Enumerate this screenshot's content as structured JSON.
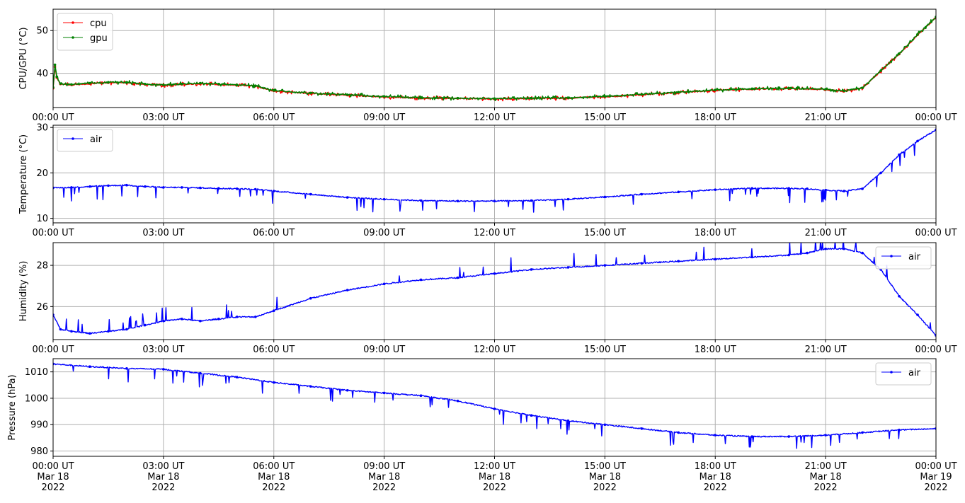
{
  "x_tick_labels": [
    "00:00 UT",
    "03:00 UT",
    "06:00 UT",
    "09:00 UT",
    "12:00 UT",
    "15:00 UT",
    "18:00 UT",
    "21:00 UT",
    "00:00 UT"
  ],
  "x_tick_dates": [
    "Mar 18",
    "Mar 18",
    "Mar 18",
    "Mar 18",
    "Mar 18",
    "Mar 18",
    "Mar 18",
    "Mar 18",
    "Mar 19"
  ],
  "x_tick_years": [
    "2022",
    "2022",
    "2022",
    "2022",
    "2022",
    "2022",
    "2022",
    "2022",
    "2022"
  ],
  "colors": {
    "cpu": "#ff0000",
    "gpu": "#008000",
    "air": "#0000ff",
    "grid": "#b0b0b0"
  },
  "chart_data": [
    {
      "type": "line",
      "ylabel": "CPU/GPU (°C)",
      "xlim": [
        "2022-03-18 00:00",
        "2022-03-19 00:00"
      ],
      "ylim": [
        32,
        55
      ],
      "yticks": [
        40,
        50
      ],
      "grid": true,
      "legend": "top-left",
      "x_hours": [
        0,
        0.05,
        0.1,
        0.2,
        0.5,
        1,
        1.5,
        2,
        2.5,
        3,
        3.5,
        4,
        4.5,
        5,
        5.5,
        6,
        7,
        8,
        9,
        10,
        11,
        12,
        13,
        14,
        15,
        16,
        17,
        18,
        19,
        20,
        21,
        21.5,
        22,
        22.5,
        23,
        23.5,
        24
      ],
      "series": [
        {
          "name": "cpu",
          "values": [
            36.5,
            41.5,
            39.0,
            37.5,
            37.3,
            37.6,
            37.8,
            37.8,
            37.4,
            37.2,
            37.4,
            37.6,
            37.4,
            37.2,
            37.0,
            35.9,
            35.3,
            34.9,
            34.5,
            34.2,
            34.1,
            34.0,
            34.1,
            34.2,
            34.5,
            35.0,
            35.5,
            36.0,
            36.3,
            36.4,
            36.2,
            35.8,
            36.5,
            40.5,
            44.5,
            49.0,
            53.0
          ]
        },
        {
          "name": "gpu",
          "values": [
            36.7,
            42.0,
            39.2,
            37.6,
            37.4,
            37.7,
            37.9,
            37.9,
            37.5,
            37.3,
            37.5,
            37.7,
            37.5,
            37.3,
            37.1,
            36.0,
            35.4,
            35.0,
            34.6,
            34.3,
            34.2,
            34.1,
            34.2,
            34.3,
            34.6,
            35.1,
            35.6,
            36.1,
            36.4,
            36.5,
            36.3,
            35.9,
            36.6,
            40.6,
            44.6,
            49.1,
            53.2
          ]
        }
      ]
    },
    {
      "type": "line",
      "ylabel": "Temperature (°C)",
      "xlim": [
        "2022-03-18 00:00",
        "2022-03-19 00:00"
      ],
      "ylim": [
        9,
        30.5
      ],
      "yticks": [
        10,
        20,
        30
      ],
      "grid": true,
      "legend": "top-left",
      "x_hours": [
        0,
        0.5,
        1,
        1.5,
        2,
        2.5,
        3,
        3.5,
        4,
        4.5,
        5,
        5.5,
        6,
        7,
        8,
        9,
        10,
        11,
        12,
        13,
        14,
        15,
        16,
        17,
        18,
        19,
        20,
        20.5,
        21,
        21.5,
        22,
        22.5,
        23,
        23.5,
        24
      ],
      "series": [
        {
          "name": "air",
          "values": [
            16.7,
            16.8,
            17.0,
            17.2,
            17.3,
            17.0,
            16.8,
            16.8,
            16.7,
            16.6,
            16.5,
            16.4,
            16.0,
            15.3,
            14.6,
            14.2,
            13.9,
            13.8,
            13.8,
            13.9,
            14.2,
            14.7,
            15.3,
            15.8,
            16.3,
            16.6,
            16.6,
            16.5,
            16.2,
            16.0,
            16.5,
            20.0,
            24.0,
            27.0,
            29.5
          ]
        }
      ]
    },
    {
      "type": "line",
      "ylabel": "Humidity (%)",
      "xlim": [
        "2022-03-18 00:00",
        "2022-03-19 00:00"
      ],
      "ylim": [
        24.4,
        29.1
      ],
      "yticks": [
        26,
        28
      ],
      "grid": true,
      "legend": "top-right",
      "x_hours": [
        0,
        0.2,
        0.5,
        1,
        1.5,
        2,
        2.5,
        3,
        3.5,
        4,
        4.5,
        5,
        5.5,
        6,
        7,
        8,
        9,
        10,
        11,
        12,
        13,
        14,
        15,
        16,
        17,
        18,
        19,
        20,
        20.5,
        21,
        21.5,
        22,
        22.5,
        23,
        23.5,
        24
      ],
      "series": [
        {
          "name": "air",
          "values": [
            25.6,
            24.9,
            24.8,
            24.7,
            24.8,
            24.9,
            25.1,
            25.3,
            25.4,
            25.3,
            25.4,
            25.5,
            25.5,
            25.8,
            26.4,
            26.8,
            27.1,
            27.3,
            27.4,
            27.6,
            27.8,
            27.9,
            28.0,
            28.1,
            28.2,
            28.3,
            28.4,
            28.5,
            28.6,
            28.8,
            28.8,
            28.6,
            27.8,
            26.5,
            25.6,
            24.6
          ]
        }
      ]
    },
    {
      "type": "line",
      "ylabel": "Pressure (hPa)",
      "xlim": [
        "2022-03-18 00:00",
        "2022-03-19 00:00"
      ],
      "ylim": [
        978,
        1015
      ],
      "yticks": [
        980,
        990,
        1000,
        1010
      ],
      "grid": true,
      "legend": "top-right",
      "x_hours": [
        0,
        1,
        2,
        3,
        4,
        5,
        6,
        7,
        8,
        9,
        10,
        11,
        12,
        13,
        14,
        15,
        16,
        17,
        18,
        19,
        20,
        21,
        22,
        23,
        24
      ],
      "series": [
        {
          "name": "air",
          "values": [
            1013.0,
            1012.0,
            1011.3,
            1011.0,
            1009.5,
            1008.0,
            1006.0,
            1004.5,
            1003.0,
            1002.0,
            1001.0,
            999.0,
            996.0,
            993.5,
            991.5,
            990.0,
            988.5,
            987.0,
            986.0,
            985.5,
            985.5,
            986.0,
            987.0,
            988.0,
            988.5
          ]
        }
      ]
    }
  ]
}
